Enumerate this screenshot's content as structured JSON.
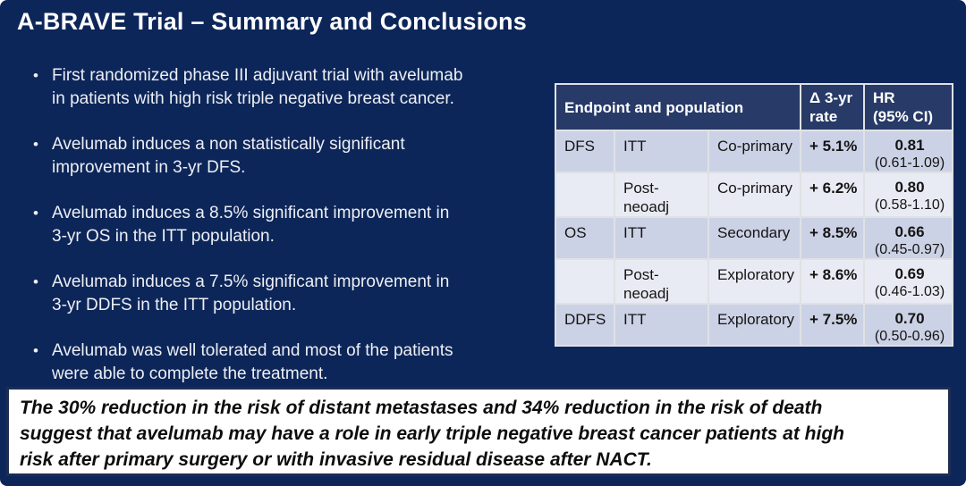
{
  "slide": {
    "title": "A-BRAVE Trial – Summary and Conclusions",
    "bullets": [
      "First randomized phase III adjuvant trial with avelumab\nin patients with high risk triple negative breast cancer.",
      "Avelumab induces a non statistically significant\nimprovement in 3-yr DFS.",
      "Avelumab induces a 8.5% significant improvement in\n3-yr OS in the ITT population.",
      "Avelumab induces a 7.5% significant improvement in\n3-yr DDFS in the ITT population.",
      "Avelumab was well tolerated and most of the patients\nwere able to complete the treatment."
    ],
    "conclusion": "The 30% reduction in the risk of distant metastases and 34% reduction in the risk of death\nsuggest that avelumab may have a role in early triple negative breast cancer patients at high\nrisk after primary surgery or with invasive residual disease after NACT."
  },
  "table": {
    "headers": {
      "endpoint_population": "Endpoint and population",
      "delta_3yr_rate": "Δ 3-yr\nrate",
      "hr_ci": "HR\n(95% CI)"
    },
    "rows": [
      {
        "endpoint": "DFS",
        "population": "ITT",
        "type": "Co-primary",
        "delta": "+ 5.1%",
        "hr": "0.81",
        "ci": "(0.61-1.09)",
        "highlight": "grey"
      },
      {
        "endpoint": "",
        "population": "Post-neoadj",
        "type": "Co-primary",
        "delta": "+ 6.2%",
        "hr": "0.80",
        "ci": "(0.58-1.10)",
        "highlight": "grey"
      },
      {
        "endpoint": "OS",
        "population": "ITT",
        "type": "Secondary",
        "delta": "+ 8.5%",
        "hr": "0.66",
        "ci": "(0.45-0.97)",
        "highlight": "green"
      },
      {
        "endpoint": "",
        "population": "Post-neoadj",
        "type": "Exploratory",
        "delta": "+ 8.6%",
        "hr": "0.69",
        "ci": "(0.46-1.03)",
        "highlight": "grey"
      },
      {
        "endpoint": "DDFS",
        "population": "ITT",
        "type": "Exploratory",
        "delta": "+ 7.5%",
        "hr": "0.70",
        "ci": "(0.50-0.96)",
        "highlight": "green"
      }
    ]
  },
  "colors": {
    "slide_bg": "#0d2659",
    "header_bg": "#273a68",
    "band_dark": "#ccd2e5",
    "band_light": "#e9ebf4",
    "grey": "#a9a8a3",
    "green": "#22a952",
    "box_border": "#1d2c52"
  }
}
